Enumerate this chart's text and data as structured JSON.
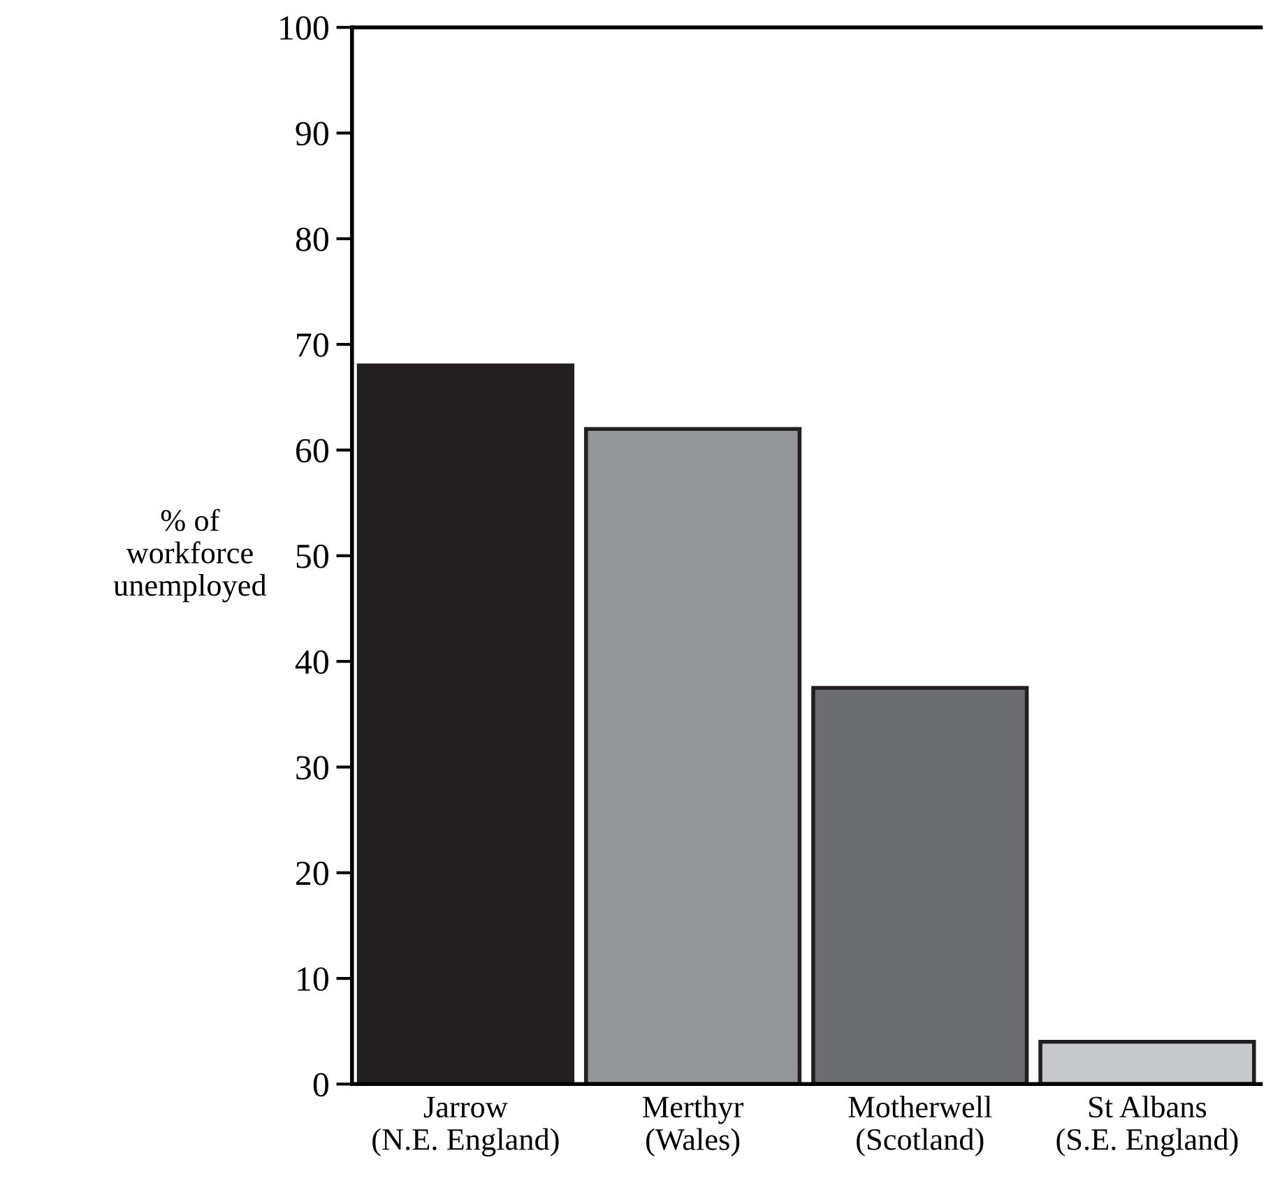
{
  "chart_data": {
    "type": "bar",
    "ylabel": "% of\nworkforce\nunemployed",
    "categories": [
      "Jarrow\n(N.E. England)",
      "Merthyr\n(Wales)",
      "Motherwell\n(Scotland)",
      "St Albans\n(S.E. England)"
    ],
    "values": [
      68,
      62,
      37.5,
      4
    ],
    "colors": [
      "#231f20",
      "#939598",
      "#6d6e71",
      "#c7c8ca"
    ],
    "ylim": [
      0,
      100
    ],
    "yticks": [
      0,
      10,
      20,
      30,
      40,
      50,
      60,
      70,
      80,
      90,
      100
    ],
    "grid": false
  }
}
